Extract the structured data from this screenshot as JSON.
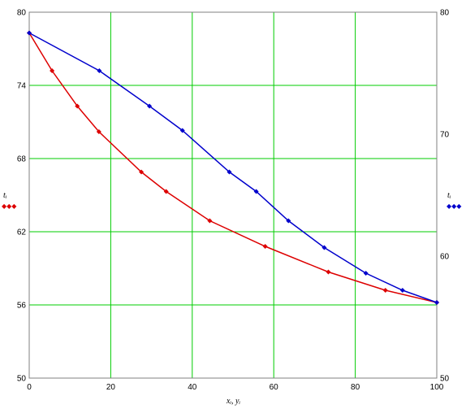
{
  "chart_data": {
    "type": "line",
    "grid": true,
    "grid_color": "#00cc00",
    "xlabel": "xᵢ, yᵢ",
    "x_ticks": [
      "0",
      "20",
      "40",
      "60",
      "80",
      "100"
    ],
    "xlim": [
      0,
      100
    ],
    "y_left": {
      "label": "tᵢ",
      "lim": [
        50,
        80
      ],
      "ticks": [
        "50",
        "56",
        "62",
        "68",
        "74",
        "80"
      ]
    },
    "y_right": {
      "label": "tᵢ",
      "lim": [
        50,
        80
      ],
      "ticks": [
        "50",
        "60",
        "70",
        "80"
      ]
    },
    "series": [
      {
        "color": "#dd0000",
        "points": [
          [
            0,
            78.3
          ],
          [
            5.6,
            75.2
          ],
          [
            11.8,
            72.3
          ],
          [
            17.1,
            70.2
          ],
          [
            27.5,
            66.9
          ],
          [
            33.6,
            65.3
          ],
          [
            44.3,
            62.9
          ],
          [
            57.9,
            60.8
          ],
          [
            73.4,
            58.7
          ],
          [
            87.4,
            57.2
          ],
          [
            100,
            56.2
          ]
        ]
      },
      {
        "color": "#0000cc",
        "points": [
          [
            0,
            78.3
          ],
          [
            17.2,
            75.2
          ],
          [
            29.5,
            72.3
          ],
          [
            37.6,
            70.3
          ],
          [
            49.1,
            66.9
          ],
          [
            55.7,
            65.3
          ],
          [
            63.6,
            62.9
          ],
          [
            72.4,
            60.7
          ],
          [
            82.6,
            58.6
          ],
          [
            91.6,
            57.2
          ],
          [
            100,
            56.2
          ]
        ]
      }
    ]
  }
}
